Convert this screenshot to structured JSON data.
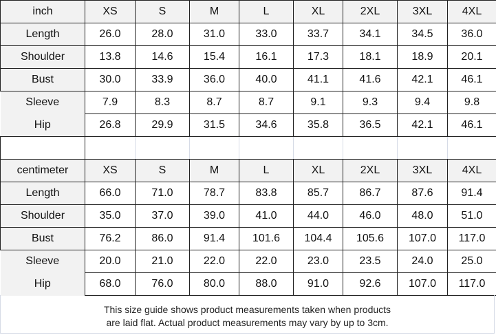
{
  "sizes": [
    "XS",
    "S",
    "M",
    "L",
    "XL",
    "2XL",
    "3XL",
    "4XL"
  ],
  "tables": [
    {
      "unit": "inch",
      "rows": [
        {
          "label": "Length",
          "values": [
            "26.0",
            "28.0",
            "31.0",
            "33.0",
            "33.7",
            "34.1",
            "34.5",
            "36.0"
          ]
        },
        {
          "label": "Shoulder",
          "values": [
            "13.8",
            "14.6",
            "15.4",
            "16.1",
            "17.3",
            "18.1",
            "18.9",
            "20.1"
          ]
        },
        {
          "label": "Bust",
          "values": [
            "30.0",
            "33.9",
            "36.0",
            "40.0",
            "41.1",
            "41.6",
            "42.1",
            "46.1"
          ]
        },
        {
          "label": "Sleeve",
          "values": [
            "7.9",
            "8.3",
            "8.7",
            "8.7",
            "9.1",
            "9.3",
            "9.4",
            "9.8"
          ]
        },
        {
          "label": "Hip",
          "values": [
            "26.8",
            "29.9",
            "31.5",
            "34.6",
            "35.8",
            "36.5",
            "42.1",
            "46.1"
          ]
        }
      ]
    },
    {
      "unit": "centimeter",
      "rows": [
        {
          "label": "Length",
          "values": [
            "66.0",
            "71.0",
            "78.7",
            "83.8",
            "85.7",
            "86.7",
            "87.6",
            "91.4"
          ]
        },
        {
          "label": "Shoulder",
          "values": [
            "35.0",
            "37.0",
            "39.0",
            "41.0",
            "44.0",
            "46.0",
            "48.0",
            "51.0"
          ]
        },
        {
          "label": "Bust",
          "values": [
            "76.2",
            "86.0",
            "91.4",
            "101.6",
            "104.4",
            "105.6",
            "107.0",
            "117.0"
          ]
        },
        {
          "label": "Sleeve",
          "values": [
            "20.0",
            "21.0",
            "22.0",
            "22.0",
            "23.0",
            "23.5",
            "24.0",
            "25.0"
          ]
        },
        {
          "label": "Hip",
          "values": [
            "68.0",
            "76.0",
            "80.0",
            "88.0",
            "91.0",
            "92.6",
            "107.0",
            "117.0"
          ]
        }
      ]
    }
  ],
  "note": {
    "line1": "This size guide shows product measurements taken when products",
    "line2": "are laid flat. Actual product measurements may vary by up to 3cm."
  }
}
